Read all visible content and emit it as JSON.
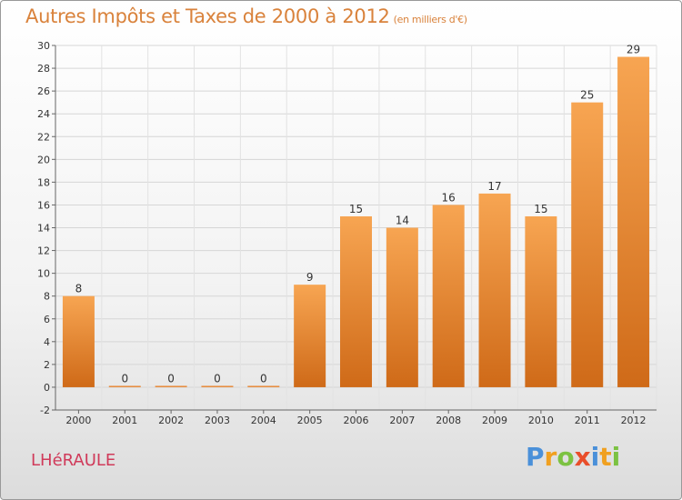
{
  "title": "Autres Impôts et Taxes de 2000 à 2012",
  "unit": "(en milliers d'€)",
  "location": "LHéRAULE",
  "logo": {
    "letters": [
      "P",
      "r",
      "o",
      "x",
      "i",
      "t",
      "i"
    ],
    "colors": [
      "#4a90d9",
      "#f0a020",
      "#7cc242",
      "#e94e2a",
      "#4a90d9",
      "#f0a020",
      "#7cc242"
    ]
  },
  "chart_data": {
    "type": "bar",
    "title": "Autres Impôts et Taxes de 2000 à 2012",
    "categories": [
      "2000",
      "2001",
      "2002",
      "2003",
      "2004",
      "2005",
      "2006",
      "2007",
      "2008",
      "2009",
      "2010",
      "2011",
      "2012"
    ],
    "values": [
      8,
      0,
      0,
      0,
      0,
      9,
      15,
      14,
      16,
      17,
      15,
      25,
      29
    ],
    "ylim": [
      -2,
      30
    ],
    "yticks": [
      -2,
      0,
      2,
      4,
      6,
      8,
      10,
      12,
      14,
      16,
      18,
      20,
      22,
      24,
      26,
      28,
      30
    ],
    "grid": true,
    "bar_color": "#f08a2c",
    "xlabel": "",
    "ylabel": ""
  }
}
